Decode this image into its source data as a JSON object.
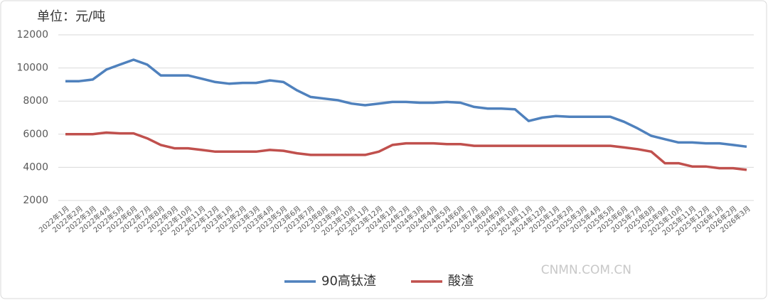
{
  "chart_data": {
    "type": "line",
    "title": "单位：元/吨",
    "categories": [
      "2022年1月",
      "2022年2月",
      "2022年3月",
      "2022年4月",
      "2022年5月",
      "2022年6月",
      "2022年7月",
      "2022年8月",
      "2022年9月",
      "2022年10月",
      "2022年11月",
      "2022年12月",
      "2023年1月",
      "2023年2月",
      "2023年3月",
      "2023年4月",
      "2023年5月",
      "2023年6月",
      "2023年7月",
      "2023年8月",
      "2023年9月",
      "2023年10月",
      "2023年11月",
      "2023年12月",
      "2024年1月",
      "2024年2月",
      "2024年3月",
      "2024年4月",
      "2024年5月",
      "2024年6月",
      "2024年7月",
      "2024年8月",
      "2024年9月",
      "2024年10月",
      "2024年11月",
      "2024年12月",
      "2025年1月",
      "2025年2月",
      "2025年3月",
      "2025年4月",
      "2025年5月",
      "2025年6月",
      "2025年7月",
      "2025年8月",
      "2025年9月",
      "2025年10月",
      "2025年11月",
      "2025年12月",
      "2026年1月",
      "2026年2月",
      "2026年3月"
    ],
    "series": [
      {
        "name": "90高钛渣",
        "color": "#4f81bd",
        "values": [
          9200,
          9200,
          9300,
          9900,
          10200,
          10500,
          10200,
          9550,
          9550,
          9550,
          9350,
          9150,
          9050,
          9100,
          9100,
          9250,
          9150,
          8650,
          8250,
          8150,
          8050,
          7850,
          7750,
          7850,
          7950,
          7950,
          7900,
          7900,
          7950,
          7900,
          7650,
          7550,
          7550,
          7500,
          6800,
          7000,
          7100,
          7050,
          7050,
          7050,
          7050,
          6750,
          6350,
          5900,
          5700,
          5500,
          5500,
          5450,
          5450,
          5350,
          5250
        ]
      },
      {
        "name": "酸渣",
        "color": "#c0504d",
        "values": [
          6000,
          6000,
          6000,
          6100,
          6050,
          6050,
          5750,
          5350,
          5150,
          5150,
          5050,
          4950,
          4950,
          4950,
          4950,
          5050,
          5000,
          4850,
          4750,
          4750,
          4750,
          4750,
          4750,
          4950,
          5350,
          5450,
          5450,
          5450,
          5400,
          5400,
          5300,
          5300,
          5300,
          5300,
          5300,
          5300,
          5300,
          5300,
          5300,
          5300,
          5300,
          5200,
          5100,
          4950,
          4250,
          4250,
          4050,
          4050,
          3950,
          3950,
          3850
        ]
      }
    ],
    "ylim": [
      2000,
      12000
    ],
    "yticks": [
      2000,
      4000,
      6000,
      8000,
      10000,
      12000
    ],
    "grid": true,
    "legend": "bottom",
    "watermark": "CNMN.COM.CN"
  }
}
